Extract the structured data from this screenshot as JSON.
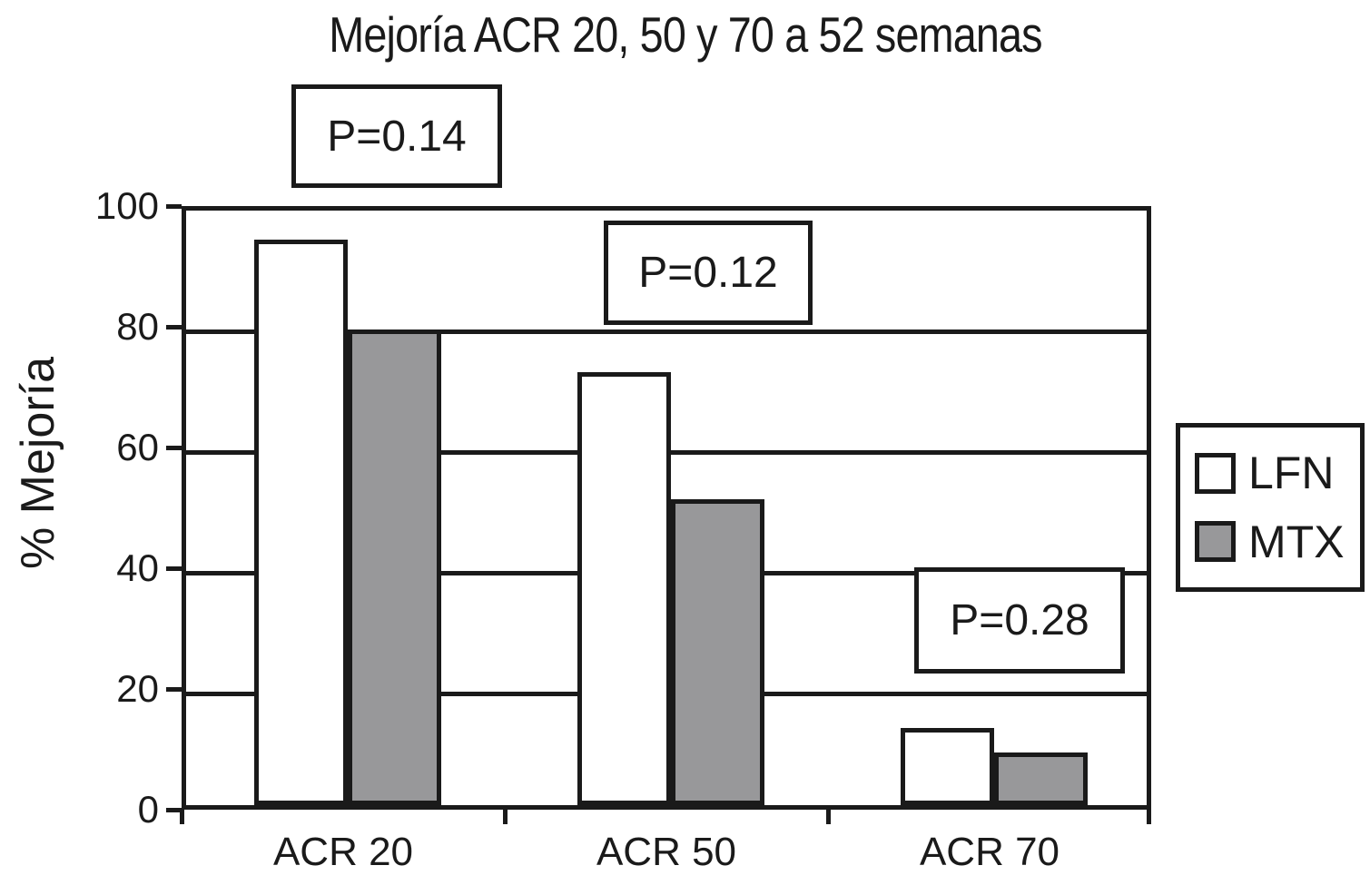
{
  "chart_data": {
    "type": "bar",
    "title": "Mejoría ACR 20, 50 y 70 a 52 semanas",
    "ylabel": "% Mejoría",
    "xlabel": "",
    "categories": [
      "ACR 20",
      "ACR 50",
      "ACR 70"
    ],
    "series": [
      {
        "name": "LFN",
        "fill": "#ffffff",
        "values": [
          93,
          71,
          12
        ]
      },
      {
        "name": "MTX",
        "fill": "#98989a",
        "values": [
          78,
          50,
          8
        ]
      }
    ],
    "annotations": [
      {
        "label": "P=0.14",
        "category": "ACR 20"
      },
      {
        "label": "P=0.12",
        "category": "ACR 50"
      },
      {
        "label": "P=0.28",
        "category": "ACR 70"
      }
    ],
    "y_axis": {
      "min": 0,
      "max": 100,
      "ticks": [
        100,
        80,
        60,
        40,
        20,
        0
      ],
      "gridline_values": [
        80,
        60,
        40,
        20
      ]
    },
    "grid": "horizontal",
    "legend_position": "right-outside",
    "legend_entries": [
      "LFN",
      "MTX"
    ],
    "colors": {
      "ink": "#1a1a1a",
      "lfn_bar": "#ffffff",
      "mtx_bar": "#98989a",
      "background": "#ffffff"
    }
  }
}
